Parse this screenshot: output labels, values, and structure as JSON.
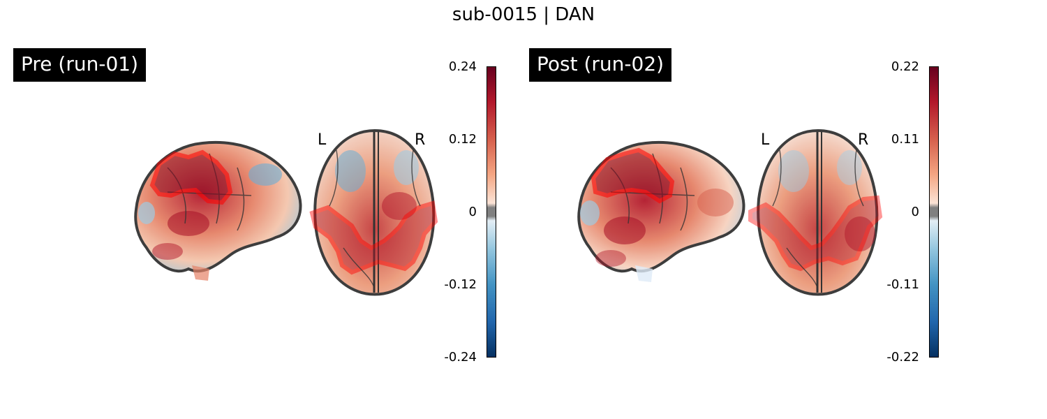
{
  "title": "sub-0015 | DAN",
  "panels": [
    {
      "title": "Pre (run-01)",
      "left_label": "L",
      "right_label": "R",
      "colorbar": {
        "max": "0.24",
        "mid_high": "0.12",
        "zero": "0",
        "mid_low": "-0.12",
        "min": "-0.24"
      }
    },
    {
      "title": "Post (run-02)",
      "left_label": "L",
      "right_label": "R",
      "colorbar": {
        "max": "0.22",
        "mid_high": "0.11",
        "zero": "0",
        "mid_low": "-0.11",
        "min": "-0.22"
      }
    }
  ],
  "colors": {
    "overlay_outline": "#ff0000",
    "cmap_high": "#67001f",
    "cmap_mid_high": "#d6604d",
    "cmap_zero": "#f7f7f7",
    "cmap_mid_low": "#4393c3",
    "cmap_low": "#053061",
    "threshold_gray": "#808080"
  }
}
